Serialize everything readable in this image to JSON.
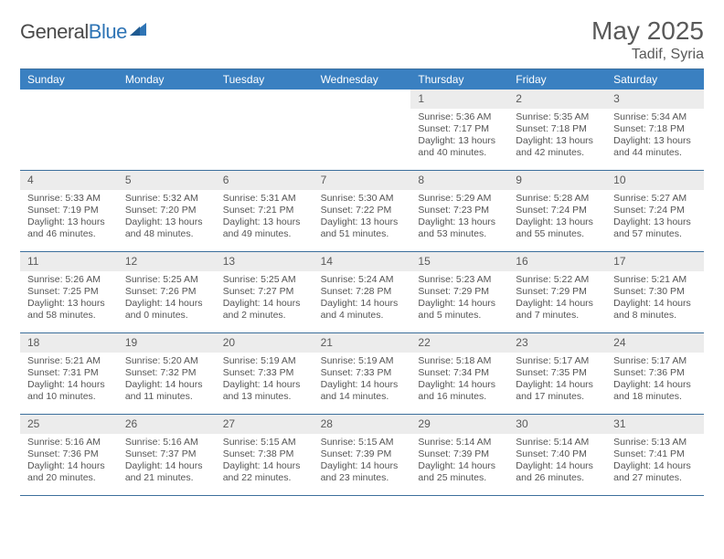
{
  "logo": {
    "prefix": "General",
    "suffix": "Blue"
  },
  "header": {
    "month": "May 2025",
    "location": "Tadif, Syria"
  },
  "colors": {
    "header_bar": "#3a80c1",
    "header_text": "#ffffff",
    "rule": "#3c6f9c",
    "daynum_bg": "#ececec",
    "text": "#555555"
  },
  "days": [
    "Sunday",
    "Monday",
    "Tuesday",
    "Wednesday",
    "Thursday",
    "Friday",
    "Saturday"
  ],
  "leading_blanks": 4,
  "cells": [
    {
      "n": "1",
      "sr": "5:36 AM",
      "ss": "7:17 PM",
      "dh": "13",
      "dm": "40"
    },
    {
      "n": "2",
      "sr": "5:35 AM",
      "ss": "7:18 PM",
      "dh": "13",
      "dm": "42"
    },
    {
      "n": "3",
      "sr": "5:34 AM",
      "ss": "7:18 PM",
      "dh": "13",
      "dm": "44"
    },
    {
      "n": "4",
      "sr": "5:33 AM",
      "ss": "7:19 PM",
      "dh": "13",
      "dm": "46"
    },
    {
      "n": "5",
      "sr": "5:32 AM",
      "ss": "7:20 PM",
      "dh": "13",
      "dm": "48"
    },
    {
      "n": "6",
      "sr": "5:31 AM",
      "ss": "7:21 PM",
      "dh": "13",
      "dm": "49"
    },
    {
      "n": "7",
      "sr": "5:30 AM",
      "ss": "7:22 PM",
      "dh": "13",
      "dm": "51"
    },
    {
      "n": "8",
      "sr": "5:29 AM",
      "ss": "7:23 PM",
      "dh": "13",
      "dm": "53"
    },
    {
      "n": "9",
      "sr": "5:28 AM",
      "ss": "7:24 PM",
      "dh": "13",
      "dm": "55"
    },
    {
      "n": "10",
      "sr": "5:27 AM",
      "ss": "7:24 PM",
      "dh": "13",
      "dm": "57"
    },
    {
      "n": "11",
      "sr": "5:26 AM",
      "ss": "7:25 PM",
      "dh": "13",
      "dm": "58"
    },
    {
      "n": "12",
      "sr": "5:25 AM",
      "ss": "7:26 PM",
      "dh": "14",
      "dm": "0"
    },
    {
      "n": "13",
      "sr": "5:25 AM",
      "ss": "7:27 PM",
      "dh": "14",
      "dm": "2"
    },
    {
      "n": "14",
      "sr": "5:24 AM",
      "ss": "7:28 PM",
      "dh": "14",
      "dm": "4"
    },
    {
      "n": "15",
      "sr": "5:23 AM",
      "ss": "7:29 PM",
      "dh": "14",
      "dm": "5"
    },
    {
      "n": "16",
      "sr": "5:22 AM",
      "ss": "7:29 PM",
      "dh": "14",
      "dm": "7"
    },
    {
      "n": "17",
      "sr": "5:21 AM",
      "ss": "7:30 PM",
      "dh": "14",
      "dm": "8"
    },
    {
      "n": "18",
      "sr": "5:21 AM",
      "ss": "7:31 PM",
      "dh": "14",
      "dm": "10"
    },
    {
      "n": "19",
      "sr": "5:20 AM",
      "ss": "7:32 PM",
      "dh": "14",
      "dm": "11"
    },
    {
      "n": "20",
      "sr": "5:19 AM",
      "ss": "7:33 PM",
      "dh": "14",
      "dm": "13"
    },
    {
      "n": "21",
      "sr": "5:19 AM",
      "ss": "7:33 PM",
      "dh": "14",
      "dm": "14"
    },
    {
      "n": "22",
      "sr": "5:18 AM",
      "ss": "7:34 PM",
      "dh": "14",
      "dm": "16"
    },
    {
      "n": "23",
      "sr": "5:17 AM",
      "ss": "7:35 PM",
      "dh": "14",
      "dm": "17"
    },
    {
      "n": "24",
      "sr": "5:17 AM",
      "ss": "7:36 PM",
      "dh": "14",
      "dm": "18"
    },
    {
      "n": "25",
      "sr": "5:16 AM",
      "ss": "7:36 PM",
      "dh": "14",
      "dm": "20"
    },
    {
      "n": "26",
      "sr": "5:16 AM",
      "ss": "7:37 PM",
      "dh": "14",
      "dm": "21"
    },
    {
      "n": "27",
      "sr": "5:15 AM",
      "ss": "7:38 PM",
      "dh": "14",
      "dm": "22"
    },
    {
      "n": "28",
      "sr": "5:15 AM",
      "ss": "7:39 PM",
      "dh": "14",
      "dm": "23"
    },
    {
      "n": "29",
      "sr": "5:14 AM",
      "ss": "7:39 PM",
      "dh": "14",
      "dm": "25"
    },
    {
      "n": "30",
      "sr": "5:14 AM",
      "ss": "7:40 PM",
      "dh": "14",
      "dm": "26"
    },
    {
      "n": "31",
      "sr": "5:13 AM",
      "ss": "7:41 PM",
      "dh": "14",
      "dm": "27"
    }
  ],
  "labels": {
    "sunrise": "Sunrise:",
    "sunset": "Sunset:",
    "daylight": "Daylight:",
    "hours": "hours",
    "and": "and",
    "minutes": "minutes."
  }
}
